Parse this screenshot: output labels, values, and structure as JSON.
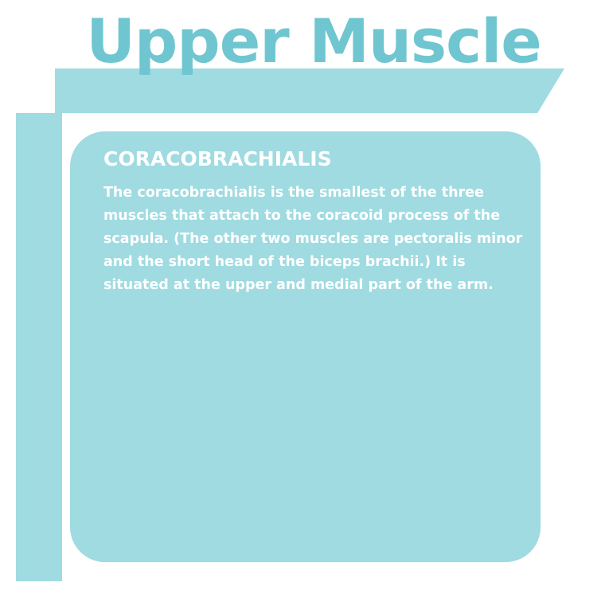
{
  "colors": {
    "title_text": "#6fc6d0",
    "accent_bar": "#9fdbe1",
    "card_background": "#9fdbe1",
    "card_text": "#ffffff"
  },
  "title": "Upper Muscle",
  "card": {
    "heading": "CORACOBRACHIALIS",
    "body": "The coracobrachialis is the smallest of the three muscles that attach to the coracoid process of the scapula. (The other two muscles are pectoralis minor and the short head of the biceps brachii.) It is situated at the upper and medial part of the arm."
  }
}
